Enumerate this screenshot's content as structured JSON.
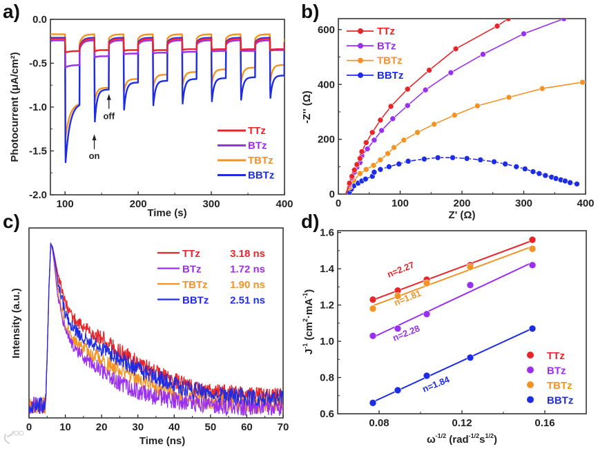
{
  "watermark": "大数跨境",
  "panel_labels": [
    "a)",
    "b)",
    "c)",
    "d)"
  ],
  "colors": {
    "TTz": "#e8262a",
    "BTz": "#9a2ff0",
    "TBTz": "#f39324",
    "BBTz": "#1e2ce4"
  },
  "chart_data": [
    {
      "type": "line",
      "title": "",
      "xlabel": "Time (s)",
      "ylabel": "Photocurrent (μA/cm²)",
      "xlim": [
        80,
        400
      ],
      "ylim": [
        -2.0,
        0.0
      ],
      "x_ticks": [
        100,
        200,
        300,
        400
      ],
      "x_tick_labels": [
        "100",
        "200",
        "300",
        "400"
      ],
      "y_ticks": [
        0,
        -0.5,
        -1.0,
        -1.5,
        -2.0
      ],
      "y_tick_labels": [
        "0.0",
        "-0.5",
        "-1.0",
        "-1.5",
        "-2.0"
      ],
      "legend": "bottom-right",
      "annotations": [
        {
          "text": "on",
          "x": 140,
          "y": -1.55
        },
        {
          "text": "off",
          "x": 160,
          "y": -1.1
        }
      ],
      "light_on_times": [
        100,
        140,
        180,
        220,
        260,
        300,
        340,
        380
      ],
      "light_on_duration": 20,
      "series": [
        {
          "name": "TBTz",
          "dark": -0.17,
          "peaks": [
            -1.4,
            -0.97,
            -0.86,
            -0.81,
            -0.79,
            -0.77,
            -0.76,
            -0.75
          ],
          "ends": [
            -0.95,
            -0.78,
            -0.68,
            -0.63,
            -0.6,
            -0.57,
            -0.55,
            -0.52
          ]
        },
        {
          "name": "BBTz",
          "dark": -0.21,
          "peaks": [
            -1.72,
            -1.27,
            -1.12,
            -1.06,
            -1.04,
            -1.01,
            -0.99,
            -0.97
          ],
          "ends": [
            -0.95,
            -0.8,
            -0.72,
            -0.7,
            -0.68,
            -0.67,
            -0.66,
            -0.64
          ]
        },
        {
          "name": "BTz",
          "dark": -0.24,
          "peaks": [
            -0.55,
            -0.44,
            -0.4,
            -0.39,
            -0.38,
            -0.37,
            -0.36,
            -0.36
          ],
          "ends": [
            -0.52,
            -0.42,
            -0.39,
            -0.38,
            -0.37,
            -0.36,
            -0.36,
            -0.35
          ]
        },
        {
          "name": "TTz",
          "dark": -0.22,
          "peaks": [
            -0.38,
            -0.37,
            -0.36,
            -0.36,
            -0.35,
            -0.35,
            -0.35,
            -0.35
          ],
          "ends": [
            -0.36,
            -0.35,
            -0.35,
            -0.35,
            -0.34,
            -0.34,
            -0.34,
            -0.34
          ]
        }
      ],
      "legend_entries": [
        "TTz",
        "BTz",
        "TBTz",
        "BBTz"
      ]
    },
    {
      "type": "scatter",
      "title": "",
      "xlabel": "Z' (Ω)",
      "ylabel": "-Z'' (Ω)",
      "xlim": [
        0,
        400
      ],
      "ylim": [
        0,
        640
      ],
      "x_ticks": [
        0,
        100,
        200,
        300,
        400
      ],
      "x_tick_labels": [
        "0",
        "100",
        "200",
        "300",
        "400"
      ],
      "y_ticks": [
        0,
        200,
        400,
        600
      ],
      "y_tick_labels": [
        "0",
        "200",
        "400",
        "600"
      ],
      "legend": "top-left",
      "legend_entries": [
        "TTz",
        "BTz",
        "TBTz",
        "BBTz"
      ],
      "series": [
        {
          "name": "BBTz",
          "x": [
            12,
            18,
            21,
            25,
            32,
            38,
            44,
            55,
            58,
            68,
            82,
            98,
            113,
            139,
            161,
            185,
            208,
            230,
            252,
            270,
            288,
            302,
            315,
            325,
            335,
            345,
            352,
            360,
            367,
            375,
            386
          ],
          "y": [
            0,
            8,
            18,
            30,
            40,
            48,
            55,
            65,
            80,
            90,
            100,
            110,
            120,
            128,
            133,
            133,
            130,
            125,
            118,
            110,
            100,
            92,
            82,
            75,
            68,
            62,
            57,
            52,
            48,
            42,
            37
          ]
        },
        {
          "name": "TBTz",
          "x": [
            12,
            18,
            25,
            35,
            45,
            57,
            68,
            80,
            90,
            106,
            128,
            155,
            188,
            225,
            276,
            330,
            395
          ],
          "y": [
            0,
            25,
            50,
            75,
            90,
            105,
            125,
            148,
            170,
            197,
            225,
            255,
            288,
            322,
            353,
            385,
            408
          ]
        },
        {
          "name": "BTz",
          "x": [
            12,
            18,
            22,
            26,
            30,
            35,
            38,
            47,
            58,
            70,
            88,
            112,
            141,
            182,
            234,
            300,
            365
          ],
          "y": [
            0,
            35,
            60,
            80,
            98,
            115,
            140,
            165,
            197,
            232,
            275,
            323,
            380,
            443,
            510,
            585,
            640
          ]
        },
        {
          "name": "TTz",
          "x": [
            12,
            18,
            22,
            26,
            30,
            35,
            38,
            45,
            55,
            68,
            85,
            112,
            147,
            190,
            257,
            275
          ],
          "y": [
            0,
            40,
            65,
            88,
            108,
            130,
            155,
            188,
            225,
            270,
            320,
            383,
            452,
            530,
            613,
            640
          ]
        }
      ]
    },
    {
      "type": "line",
      "title": "",
      "xlabel": "Time (ns)",
      "ylabel": "Intensity (a.u.)",
      "xlim": [
        0,
        70
      ],
      "ylim": [
        0,
        1.09
      ],
      "x_ticks": [
        0,
        10,
        20,
        30,
        40,
        50,
        60,
        70
      ],
      "x_tick_labels": [
        "0",
        "10",
        "20",
        "30",
        "40",
        "50",
        "60",
        "70"
      ],
      "legend": "top-right",
      "legend_entries": [
        {
          "name": "TTz",
          "lifetime": "3.18 ns"
        },
        {
          "name": "BTz",
          "lifetime": "1.72 ns"
        },
        {
          "name": "TBTz",
          "lifetime": "1.90 ns"
        },
        {
          "name": "BBTz",
          "lifetime": "2.51 ns"
        }
      ],
      "x": [
        0,
        4.5,
        5,
        5.5,
        6,
        6.5,
        7,
        8,
        10,
        12,
        15,
        20,
        25,
        30,
        35,
        40,
        45,
        50,
        60,
        70
      ],
      "series": [
        {
          "name": "TTz",
          "values": [
            0.07,
            0.07,
            0.35,
            0.75,
            1.0,
            0.98,
            0.93,
            0.82,
            0.66,
            0.58,
            0.52,
            0.46,
            0.38,
            0.32,
            0.26,
            0.21,
            0.17,
            0.15,
            0.13,
            0.12
          ]
        },
        {
          "name": "TBTz",
          "values": [
            0.07,
            0.07,
            0.35,
            0.75,
            1.0,
            0.97,
            0.9,
            0.72,
            0.55,
            0.46,
            0.4,
            0.33,
            0.27,
            0.22,
            0.17,
            0.14,
            0.12,
            0.1,
            0.08,
            0.08
          ]
        },
        {
          "name": "BTz",
          "values": [
            0.07,
            0.07,
            0.35,
            0.75,
            1.0,
            0.96,
            0.88,
            0.68,
            0.5,
            0.42,
            0.35,
            0.27,
            0.2,
            0.15,
            0.12,
            0.1,
            0.08,
            0.07,
            0.06,
            0.06
          ]
        },
        {
          "name": "BBTz",
          "values": [
            0.07,
            0.07,
            0.35,
            0.75,
            1.0,
            0.98,
            0.92,
            0.78,
            0.6,
            0.52,
            0.46,
            0.4,
            0.34,
            0.28,
            0.23,
            0.19,
            0.16,
            0.14,
            0.12,
            0.12
          ]
        }
      ]
    },
    {
      "type": "scatter",
      "title": "",
      "xlabel_parts": [
        "ω",
        "-1/2",
        " (rad",
        "-1/2",
        "s",
        "1/2",
        ")"
      ],
      "ylabel_parts": [
        "J",
        "-1",
        " (cm",
        "2",
        "·mA",
        "-1",
        ")"
      ],
      "xlim": [
        0.06,
        0.18
      ],
      "ylim": [
        0.6,
        1.61
      ],
      "x_ticks": [
        0.08,
        0.12,
        0.16
      ],
      "x_tick_labels": [
        "0.08",
        "0.12",
        "0.16"
      ],
      "y_ticks": [
        0.6,
        0.8,
        1.0,
        1.2,
        1.4,
        1.6
      ],
      "y_tick_labels": [
        "0.6",
        "0.8",
        "1.0",
        "1.2",
        "1.4",
        "1.6"
      ],
      "legend": "bottom-right",
      "legend_entries": [
        "TTz",
        "BTz",
        "TBTz",
        "BBTz"
      ],
      "x": [
        0.077,
        0.089,
        0.103,
        0.124,
        0.154
      ],
      "series": [
        {
          "name": "TTz",
          "values": [
            1.23,
            1.28,
            1.34,
            1.42,
            1.56
          ],
          "label": "n=2.27"
        },
        {
          "name": "TBTz",
          "values": [
            1.18,
            1.25,
            1.32,
            1.41,
            1.51
          ],
          "label": "n=1.81"
        },
        {
          "name": "BTz",
          "values": [
            1.03,
            1.07,
            1.15,
            1.31,
            1.42
          ],
          "label": "n=2.28"
        },
        {
          "name": "BBTz",
          "values": [
            0.66,
            0.73,
            0.81,
            0.91,
            1.07
          ],
          "label": "n=1.84"
        }
      ]
    }
  ]
}
